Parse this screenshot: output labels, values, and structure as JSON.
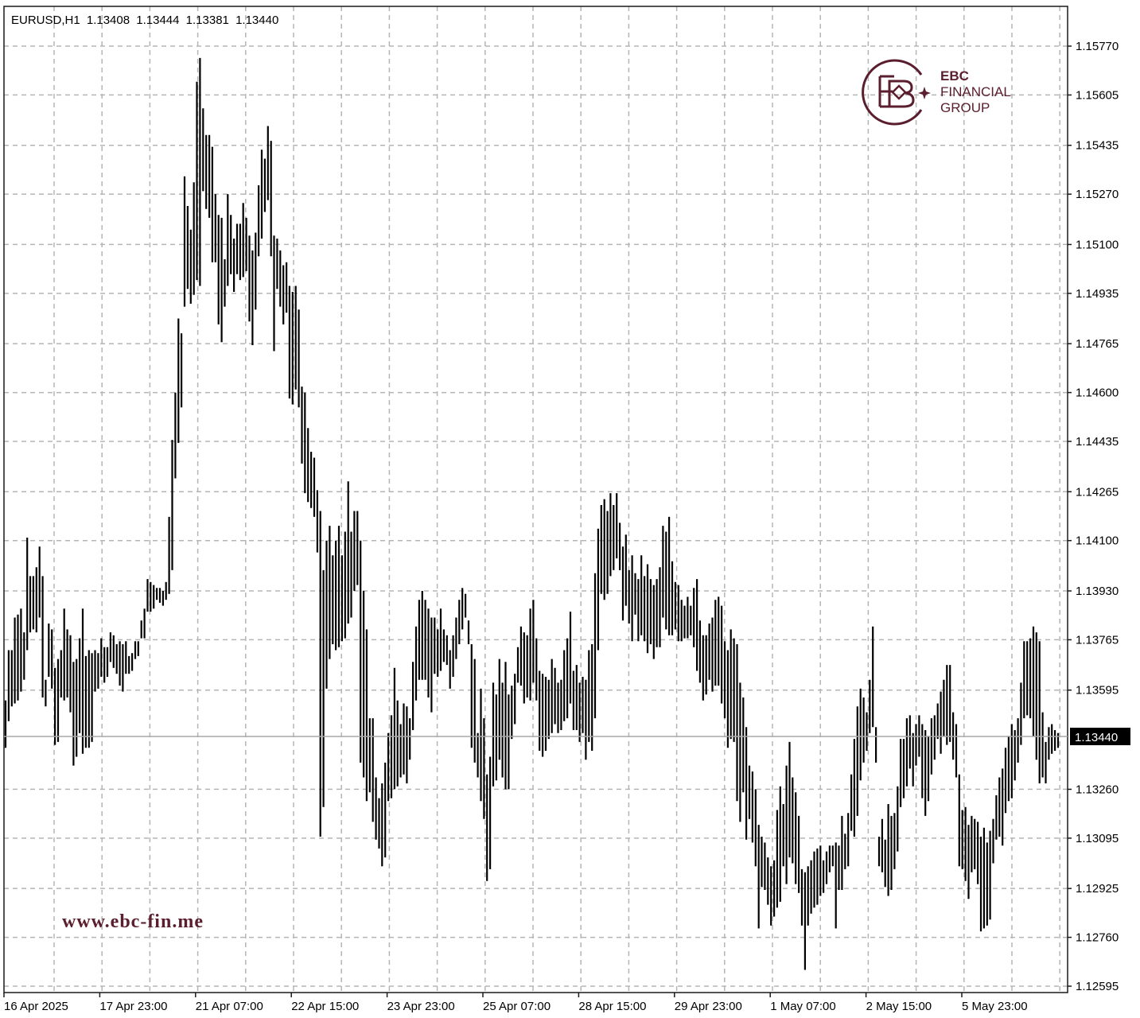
{
  "header": {
    "symbol": "EURUSD,H1",
    "open": "1.13408",
    "high": "1.13444",
    "low": "1.13381",
    "close": "1.13440"
  },
  "branding": {
    "logo_line1": "EBC",
    "logo_line2": "FINANCIAL",
    "logo_line3": "GROUP",
    "brand_color": "#5a1e2e",
    "website": "www.ebc-fin.me"
  },
  "current_price": "1.13440",
  "chart_data": {
    "type": "ohlc",
    "symbol": "EURUSD",
    "timeframe": "H1",
    "y_ticks": [
      "1.15770",
      "1.15605",
      "1.15435",
      "1.15270",
      "1.15100",
      "1.14935",
      "1.14765",
      "1.14600",
      "1.14435",
      "1.14265",
      "1.14100",
      "1.13930",
      "1.13765",
      "1.13595",
      "1.13260",
      "1.13095",
      "1.12925",
      "1.12760",
      "1.12595"
    ],
    "x_ticks": [
      "16 Apr 2025",
      "17 Apr 23:00",
      "21 Apr 07:00",
      "22 Apr 15:00",
      "23 Apr 23:00",
      "25 Apr 07:00",
      "28 Apr 15:00",
      "29 Apr 23:00",
      "1 May 07:00",
      "2 May 15:00",
      "5 May 23:00"
    ],
    "ylim": [
      1.1256,
      1.1585
    ],
    "grid": true,
    "bars": [
      [
        1.1356,
        1.134
      ],
      [
        1.1373,
        1.1349
      ],
      [
        1.1373,
        1.1354
      ],
      [
        1.1384,
        1.1355
      ],
      [
        1.1385,
        1.1356
      ],
      [
        1.1387,
        1.1359
      ],
      [
        1.1379,
        1.1363
      ],
      [
        1.1411,
        1.1373
      ],
      [
        1.1398,
        1.1379
      ],
      [
        1.1398,
        1.138
      ],
      [
        1.1401,
        1.1379
      ],
      [
        1.1408,
        1.1384
      ],
      [
        1.1398,
        1.1357
      ],
      [
        1.1363,
        1.1354
      ],
      [
        1.1382,
        1.1364
      ],
      [
        1.138,
        1.136
      ],
      [
        1.1367,
        1.1341
      ],
      [
        1.137,
        1.1342
      ],
      [
        1.1373,
        1.1357
      ],
      [
        1.1387,
        1.1356
      ],
      [
        1.138,
        1.1357
      ],
      [
        1.1378,
        1.1352
      ],
      [
        1.1369,
        1.1334
      ],
      [
        1.137,
        1.1337
      ],
      [
        1.1377,
        1.1345
      ],
      [
        1.1387,
        1.1338
      ],
      [
        1.1371,
        1.134
      ],
      [
        1.1373,
        1.134
      ],
      [
        1.1372,
        1.1342
      ],
      [
        1.1373,
        1.1359
      ],
      [
        1.1372,
        1.136
      ],
      [
        1.1377,
        1.1364
      ],
      [
        1.1374,
        1.1362
      ],
      [
        1.1374,
        1.1364
      ],
      [
        1.1379,
        1.1369
      ],
      [
        1.1378,
        1.1367
      ],
      [
        1.1375,
        1.1365
      ],
      [
        1.1376,
        1.1361
      ],
      [
        1.1375,
        1.1359
      ],
      [
        1.1376,
        1.1365
      ],
      [
        1.1371,
        1.1365
      ],
      [
        1.1372,
        1.1366
      ],
      [
        1.1376,
        1.137
      ],
      [
        1.1376,
        1.1371
      ],
      [
        1.1383,
        1.1377
      ],
      [
        1.1387,
        1.1377
      ],
      [
        1.1397,
        1.1386
      ],
      [
        1.1396,
        1.1386
      ],
      [
        1.1395,
        1.1387
      ],
      [
        1.1394,
        1.139
      ],
      [
        1.1394,
        1.1389
      ],
      [
        1.1393,
        1.1388
      ],
      [
        1.1396,
        1.139
      ],
      [
        1.1418,
        1.1392
      ],
      [
        1.1444,
        1.14
      ],
      [
        1.146,
        1.1431
      ],
      [
        1.1485,
        1.1443
      ],
      [
        1.148,
        1.1455
      ],
      [
        1.1533,
        1.1489
      ],
      [
        1.1523,
        1.1495
      ],
      [
        1.1515,
        1.149
      ],
      [
        1.1531,
        1.1493
      ],
      [
        1.1565,
        1.1498
      ],
      [
        1.1573,
        1.1496
      ],
      [
        1.1556,
        1.1528
      ],
      [
        1.1547,
        1.1522
      ],
      [
        1.1547,
        1.1519
      ],
      [
        1.1543,
        1.1504
      ],
      [
        1.1527,
        1.1504
      ],
      [
        1.152,
        1.1483
      ],
      [
        1.1519,
        1.1477
      ],
      [
        1.1505,
        1.1489
      ],
      [
        1.1527,
        1.1496
      ],
      [
        1.152,
        1.15
      ],
      [
        1.1512,
        1.1494
      ],
      [
        1.1517,
        1.15
      ],
      [
        1.1517,
        1.1498
      ],
      [
        1.1524,
        1.1499
      ],
      [
        1.1519,
        1.1501
      ],
      [
        1.1513,
        1.1484
      ],
      [
        1.1508,
        1.1476
      ],
      [
        1.1514,
        1.1488
      ],
      [
        1.153,
        1.1506
      ],
      [
        1.1542,
        1.1512
      ],
      [
        1.1539,
        1.1521
      ],
      [
        1.155,
        1.1525
      ],
      [
        1.1545,
        1.1506
      ],
      [
        1.1513,
        1.1474
      ],
      [
        1.1512,
        1.1495
      ],
      [
        1.1508,
        1.1489
      ],
      [
        1.1503,
        1.1483
      ],
      [
        1.1504,
        1.1487
      ],
      [
        1.1496,
        1.1458
      ],
      [
        1.1494,
        1.1456
      ],
      [
        1.1496,
        1.1461
      ],
      [
        1.1488,
        1.1455
      ],
      [
        1.1462,
        1.1436
      ],
      [
        1.146,
        1.1426
      ],
      [
        1.1448,
        1.1423
      ],
      [
        1.144,
        1.1421
      ],
      [
        1.1438,
        1.1418
      ],
      [
        1.1427,
        1.1406
      ],
      [
        1.142,
        1.131
      ],
      [
        1.14,
        1.132
      ],
      [
        1.141,
        1.136
      ],
      [
        1.1415,
        1.137
      ],
      [
        1.1405,
        1.1375
      ],
      [
        1.141,
        1.1373
      ],
      [
        1.1415,
        1.1374
      ],
      [
        1.1405,
        1.1376
      ],
      [
        1.1413,
        1.1377
      ],
      [
        1.143,
        1.1382
      ],
      [
        1.1413,
        1.1384
      ],
      [
        1.142,
        1.1393
      ],
      [
        1.142,
        1.1395
      ],
      [
        1.141,
        1.1335
      ],
      [
        1.1393,
        1.133
      ],
      [
        1.138,
        1.1322
      ],
      [
        1.135,
        1.1325
      ],
      [
        1.135,
        1.1315
      ],
      [
        1.133,
        1.1309
      ],
      [
        1.1323,
        1.1306
      ],
      [
        1.1328,
        1.13
      ],
      [
        1.1335,
        1.1303
      ],
      [
        1.1345,
        1.1322
      ],
      [
        1.1351,
        1.1323
      ],
      [
        1.1367,
        1.1326
      ],
      [
        1.1356,
        1.1327
      ],
      [
        1.1348,
        1.133
      ],
      [
        1.1355,
        1.1331
      ],
      [
        1.1354,
        1.1328
      ],
      [
        1.135,
        1.1336
      ],
      [
        1.1369,
        1.1346
      ],
      [
        1.1381,
        1.1356
      ],
      [
        1.139,
        1.1363
      ],
      [
        1.1393,
        1.1363
      ],
      [
        1.139,
        1.1363
      ],
      [
        1.1387,
        1.1357
      ],
      [
        1.1384,
        1.1352
      ],
      [
        1.1384,
        1.1365
      ],
      [
        1.138,
        1.1364
      ],
      [
        1.1387,
        1.1366
      ],
      [
        1.138,
        1.1369
      ],
      [
        1.1378,
        1.1368
      ],
      [
        1.1373,
        1.136
      ],
      [
        1.1378,
        1.1364
      ],
      [
        1.1384,
        1.137
      ],
      [
        1.139,
        1.1375
      ],
      [
        1.1394,
        1.138
      ],
      [
        1.1392,
        1.1384
      ],
      [
        1.1383,
        1.1375
      ],
      [
        1.1375,
        1.134
      ],
      [
        1.137,
        1.1335
      ],
      [
        1.1345,
        1.133
      ],
      [
        1.136,
        1.1322
      ],
      [
        1.135,
        1.1316
      ],
      [
        1.1331,
        1.1295
      ],
      [
        1.1337,
        1.1299
      ],
      [
        1.1362,
        1.1327
      ],
      [
        1.1358,
        1.1329
      ],
      [
        1.137,
        1.1336
      ],
      [
        1.1362,
        1.133
      ],
      [
        1.1369,
        1.1326
      ],
      [
        1.1358,
        1.1326
      ],
      [
        1.1361,
        1.1343
      ],
      [
        1.1365,
        1.1348
      ],
      [
        1.1374,
        1.1362
      ],
      [
        1.1381,
        1.1361
      ],
      [
        1.1379,
        1.1355
      ],
      [
        1.1378,
        1.1357
      ],
      [
        1.1387,
        1.1356
      ],
      [
        1.139,
        1.1362
      ],
      [
        1.1377,
        1.1356
      ],
      [
        1.1366,
        1.1339
      ],
      [
        1.1365,
        1.1337
      ],
      [
        1.1364,
        1.1339
      ],
      [
        1.1363,
        1.1343
      ],
      [
        1.137,
        1.1345
      ],
      [
        1.1367,
        1.1348
      ],
      [
        1.1362,
        1.1345
      ],
      [
        1.1363,
        1.1346
      ],
      [
        1.1373,
        1.1349
      ],
      [
        1.1377,
        1.135
      ],
      [
        1.1386,
        1.1355
      ],
      [
        1.1366,
        1.1346
      ],
      [
        1.1368,
        1.1346
      ],
      [
        1.1362,
        1.1342
      ],
      [
        1.1364,
        1.1345
      ],
      [
        1.1363,
        1.1336
      ],
      [
        1.1373,
        1.1342
      ],
      [
        1.1375,
        1.1339
      ],
      [
        1.1399,
        1.135
      ],
      [
        1.1414,
        1.1373
      ],
      [
        1.1422,
        1.1392
      ],
      [
        1.1424,
        1.139
      ],
      [
        1.142,
        1.1392
      ],
      [
        1.1426,
        1.1398
      ],
      [
        1.1422,
        1.14
      ],
      [
        1.1426,
        1.1404
      ],
      [
        1.1416,
        1.14
      ],
      [
        1.1408,
        1.1383
      ],
      [
        1.1412,
        1.1388
      ],
      [
        1.14,
        1.1382
      ],
      [
        1.1405,
        1.1376
      ],
      [
        1.1399,
        1.1385
      ],
      [
        1.1397,
        1.1376
      ],
      [
        1.1405,
        1.1378
      ],
      [
        1.1398,
        1.1376
      ],
      [
        1.1402,
        1.1372
      ],
      [
        1.1397,
        1.1375
      ],
      [
        1.1395,
        1.137
      ],
      [
        1.1397,
        1.1374
      ],
      [
        1.1401,
        1.1374
      ],
      [
        1.1415,
        1.1384
      ],
      [
        1.1413,
        1.138
      ],
      [
        1.1418,
        1.1378
      ],
      [
        1.1403,
        1.1378
      ],
      [
        1.1396,
        1.138
      ],
      [
        1.1395,
        1.1376
      ],
      [
        1.139,
        1.1376
      ],
      [
        1.1388,
        1.1377
      ],
      [
        1.1391,
        1.1377
      ],
      [
        1.1388,
        1.1378
      ],
      [
        1.1394,
        1.1374
      ],
      [
        1.1397,
        1.1366
      ],
      [
        1.1383,
        1.1362
      ],
      [
        1.1378,
        1.1356
      ],
      [
        1.1378,
        1.1358
      ],
      [
        1.1382,
        1.1363
      ],
      [
        1.1384,
        1.1359
      ],
      [
        1.139,
        1.1361
      ],
      [
        1.1391,
        1.1361
      ],
      [
        1.1388,
        1.1355
      ],
      [
        1.1376,
        1.135
      ],
      [
        1.1373,
        1.134
      ],
      [
        1.138,
        1.1343
      ],
      [
        1.1377,
        1.1342
      ],
      [
        1.1375,
        1.1322
      ],
      [
        1.1362,
        1.1315
      ],
      [
        1.1357,
        1.1325
      ],
      [
        1.1347,
        1.1309
      ],
      [
        1.1334,
        1.1316
      ],
      [
        1.1332,
        1.1308
      ],
      [
        1.1326,
        1.13
      ],
      [
        1.1314,
        1.1279
      ],
      [
        1.131,
        1.1293
      ],
      [
        1.1308,
        1.1292
      ],
      [
        1.1303,
        1.1287
      ],
      [
        1.13,
        1.128
      ],
      [
        1.1302,
        1.1283
      ],
      [
        1.1319,
        1.1286
      ],
      [
        1.1327,
        1.1288
      ],
      [
        1.1321,
        1.13
      ],
      [
        1.1334,
        1.1294
      ],
      [
        1.1342,
        1.1303
      ],
      [
        1.133,
        1.1301
      ],
      [
        1.1325,
        1.1294
      ],
      [
        1.1317,
        1.1291
      ],
      [
        1.1299,
        1.128
      ],
      [
        1.1298,
        1.1265
      ],
      [
        1.13,
        1.128
      ],
      [
        1.1302,
        1.1284
      ],
      [
        1.1305,
        1.1286
      ],
      [
        1.1306,
        1.1287
      ],
      [
        1.1307,
        1.129
      ],
      [
        1.1302,
        1.1291
      ],
      [
        1.1305,
        1.1294
      ],
      [
        1.1307,
        1.1298
      ],
      [
        1.1307,
        1.13
      ],
      [
        1.1308,
        1.1279
      ],
      [
        1.1307,
        1.1292
      ],
      [
        1.1317,
        1.1292
      ],
      [
        1.1311,
        1.1299
      ],
      [
        1.1318,
        1.13
      ],
      [
        1.1331,
        1.1312
      ],
      [
        1.1343,
        1.131
      ],
      [
        1.1354,
        1.1317
      ],
      [
        1.136,
        1.1329
      ],
      [
        1.1357,
        1.1335
      ],
      [
        1.1352,
        1.1339
      ],
      [
        1.1363,
        1.1345
      ],
      [
        1.1381,
        1.1347
      ],
      [
        1.1347,
        1.1335
      ],
      [
        1.131,
        1.13
      ],
      [
        1.1316,
        1.1298
      ],
      [
        1.1309,
        1.1293
      ],
      [
        1.1321,
        1.129
      ],
      [
        1.1317,
        1.1292
      ],
      [
        1.1318,
        1.1299
      ],
      [
        1.1327,
        1.1305
      ],
      [
        1.1343,
        1.132
      ],
      [
        1.1343,
        1.1323
      ],
      [
        1.135,
        1.1327
      ],
      [
        1.1351,
        1.1333
      ],
      [
        1.1345,
        1.1327
      ],
      [
        1.1348,
        1.1334
      ],
      [
        1.1351,
        1.1337
      ],
      [
        1.1348,
        1.1323
      ],
      [
        1.1346,
        1.1317
      ],
      [
        1.1344,
        1.1322
      ],
      [
        1.135,
        1.1331
      ],
      [
        1.1351,
        1.1336
      ],
      [
        1.1355,
        1.1343
      ],
      [
        1.1359,
        1.1338
      ],
      [
        1.1363,
        1.1344
      ],
      [
        1.1368,
        1.1341
      ],
      [
        1.1368,
        1.1342
      ],
      [
        1.1352,
        1.1336
      ],
      [
        1.1348,
        1.133
      ],
      [
        1.1331,
        1.13
      ],
      [
        1.1319,
        1.1299
      ],
      [
        1.132,
        1.1295
      ],
      [
        1.1314,
        1.1289
      ],
      [
        1.1317,
        1.1298
      ],
      [
        1.1316,
        1.1299
      ],
      [
        1.1315,
        1.1294
      ],
      [
        1.131,
        1.1278
      ],
      [
        1.1313,
        1.1279
      ],
      [
        1.1308,
        1.128
      ],
      [
        1.1312,
        1.1282
      ],
      [
        1.1316,
        1.1301
      ],
      [
        1.1324,
        1.1309
      ],
      [
        1.133,
        1.131
      ],
      [
        1.1333,
        1.1307
      ],
      [
        1.134,
        1.1318
      ],
      [
        1.1344,
        1.1322
      ],
      [
        1.1348,
        1.1323
      ],
      [
        1.1346,
        1.1329
      ],
      [
        1.135,
        1.1335
      ],
      [
        1.1362,
        1.1341
      ],
      [
        1.1376,
        1.135
      ],
      [
        1.1376,
        1.1351
      ],
      [
        1.1377,
        1.135
      ],
      [
        1.1381,
        1.1344
      ],
      [
        1.1379,
        1.1336
      ],
      [
        1.1376,
        1.1328
      ],
      [
        1.1352,
        1.133
      ],
      [
        1.1342,
        1.1328
      ],
      [
        1.1347,
        1.1336
      ],
      [
        1.1348,
        1.1338
      ],
      [
        1.1346,
        1.1339
      ],
      [
        1.1345,
        1.134
      ]
    ]
  }
}
